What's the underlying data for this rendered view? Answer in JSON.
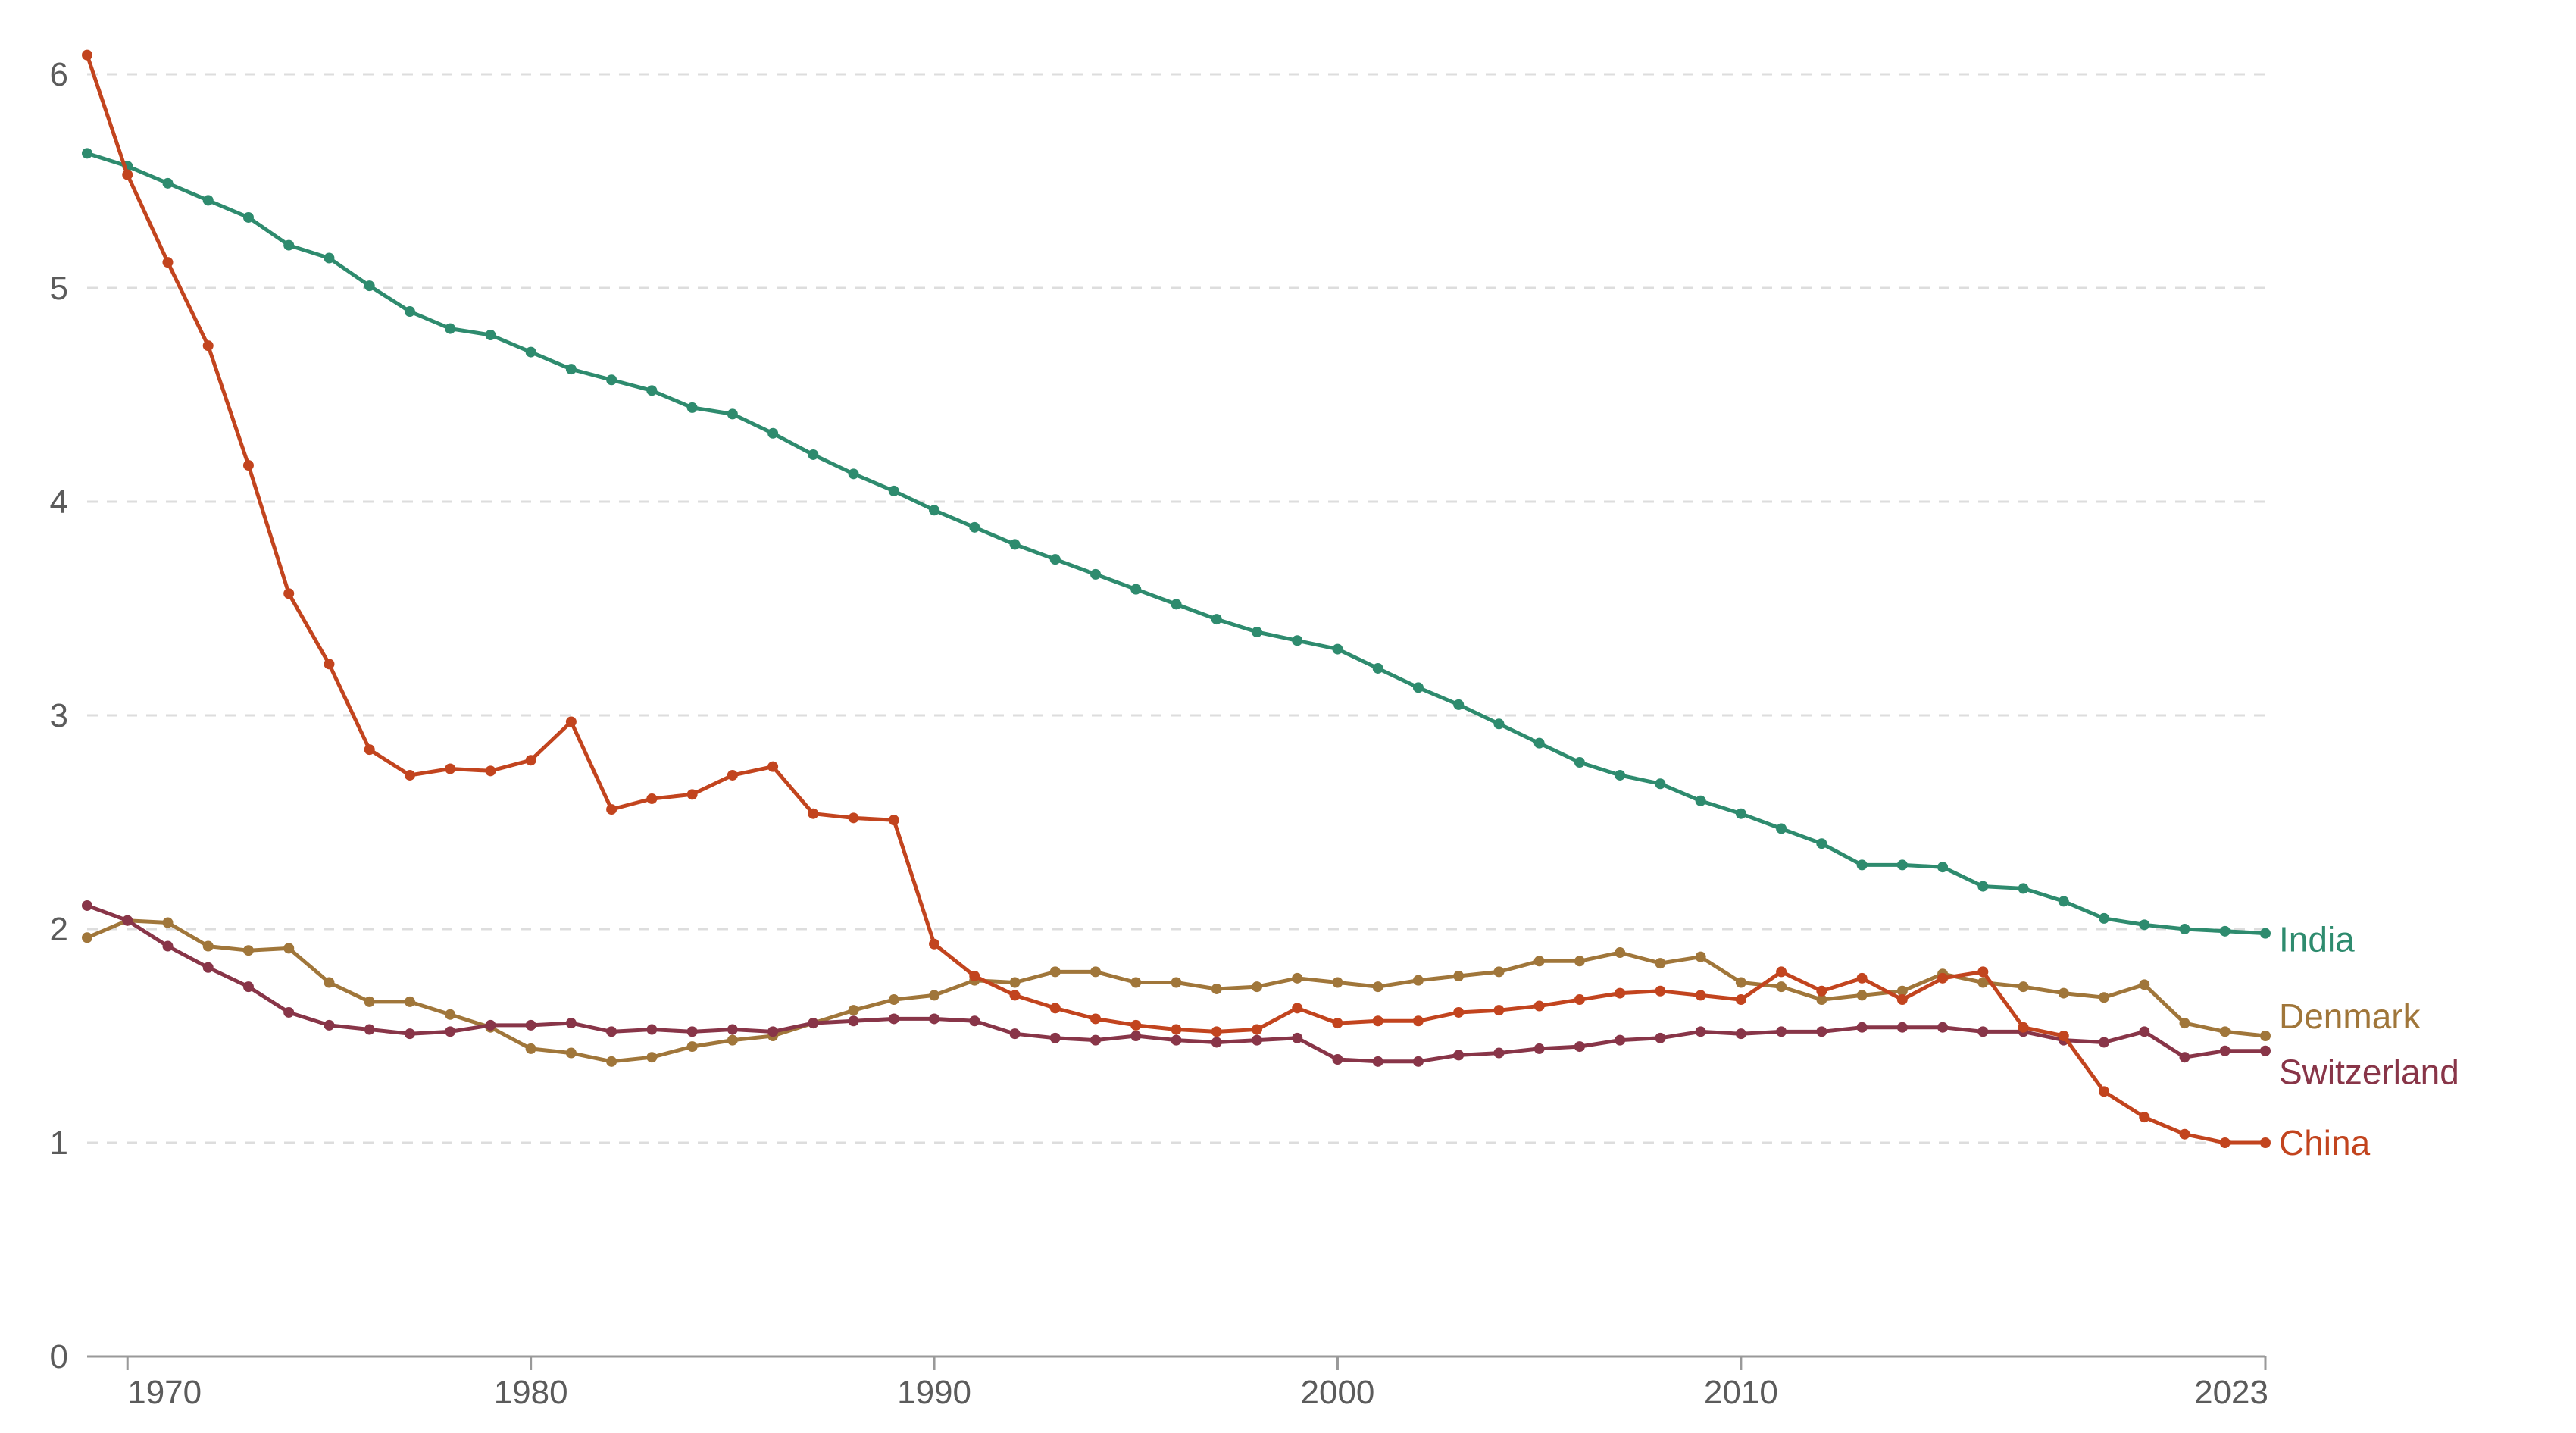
{
  "chart_data": {
    "type": "line",
    "title": "",
    "xlabel": "",
    "ylabel": "",
    "xlim": [
      1969,
      2023
    ],
    "ylim": [
      0,
      6
    ],
    "x_ticks": [
      1970,
      1980,
      1990,
      2000,
      2010,
      2023
    ],
    "y_ticks": [
      0,
      1,
      2,
      3,
      4,
      5,
      6
    ],
    "grid": "horizontal dashed",
    "legend": "inline labels at line ends (right)",
    "x": [
      1969,
      1970,
      1971,
      1972,
      1973,
      1974,
      1975,
      1976,
      1977,
      1978,
      1979,
      1980,
      1981,
      1982,
      1983,
      1984,
      1985,
      1986,
      1987,
      1988,
      1989,
      1990,
      1991,
      1992,
      1993,
      1994,
      1995,
      1996,
      1997,
      1998,
      1999,
      2000,
      2001,
      2002,
      2003,
      2004,
      2005,
      2006,
      2007,
      2008,
      2009,
      2010,
      2011,
      2012,
      2013,
      2014,
      2015,
      2016,
      2017,
      2018,
      2019,
      2020,
      2021,
      2022,
      2023
    ],
    "series": [
      {
        "name": "India",
        "color": "#2e8b6e",
        "values": [
          5.63,
          5.57,
          5.49,
          5.41,
          5.33,
          5.2,
          5.14,
          5.01,
          4.89,
          4.81,
          4.78,
          4.7,
          4.62,
          4.57,
          4.52,
          4.44,
          4.41,
          4.32,
          4.22,
          4.13,
          4.05,
          3.96,
          3.88,
          3.8,
          3.73,
          3.66,
          3.59,
          3.52,
          3.45,
          3.39,
          3.35,
          3.31,
          3.22,
          3.13,
          3.05,
          2.96,
          2.87,
          2.78,
          2.72,
          2.68,
          2.6,
          2.54,
          2.47,
          2.4,
          2.3,
          2.3,
          2.29,
          2.2,
          2.19,
          2.13,
          2.05,
          2.02,
          2.0,
          1.99,
          1.98
        ]
      },
      {
        "name": "Denmark",
        "color": "#a0763a",
        "values": [
          1.96,
          2.04,
          2.03,
          1.92,
          1.9,
          1.91,
          1.75,
          1.66,
          1.66,
          1.6,
          1.54,
          1.44,
          1.42,
          1.38,
          1.4,
          1.45,
          1.48,
          1.5,
          1.56,
          1.62,
          1.67,
          1.69,
          1.76,
          1.75,
          1.8,
          1.8,
          1.75,
          1.75,
          1.72,
          1.73,
          1.77,
          1.75,
          1.73,
          1.76,
          1.78,
          1.8,
          1.85,
          1.85,
          1.89,
          1.84,
          1.87,
          1.75,
          1.73,
          1.67,
          1.69,
          1.71,
          1.79,
          1.75,
          1.73,
          1.7,
          1.68,
          1.74,
          1.56,
          1.52,
          1.5
        ]
      },
      {
        "name": "Switzerland",
        "color": "#883548",
        "values": [
          2.11,
          2.04,
          1.92,
          1.82,
          1.73,
          1.61,
          1.55,
          1.53,
          1.51,
          1.52,
          1.55,
          1.55,
          1.56,
          1.52,
          1.53,
          1.52,
          1.53,
          1.52,
          1.56,
          1.57,
          1.58,
          1.58,
          1.57,
          1.51,
          1.49,
          1.48,
          1.5,
          1.48,
          1.47,
          1.48,
          1.49,
          1.39,
          1.38,
          1.38,
          1.41,
          1.42,
          1.44,
          1.45,
          1.48,
          1.49,
          1.52,
          1.51,
          1.52,
          1.52,
          1.54,
          1.54,
          1.54,
          1.52,
          1.52,
          1.48,
          1.47,
          1.52,
          1.4,
          1.43,
          1.43
        ]
      },
      {
        "name": "China",
        "color": "#c2441e",
        "values": [
          6.09,
          5.53,
          5.12,
          4.73,
          4.17,
          3.57,
          3.24,
          2.84,
          2.72,
          2.75,
          2.74,
          2.79,
          2.97,
          2.56,
          2.61,
          2.63,
          2.72,
          2.76,
          2.54,
          2.52,
          2.51,
          1.93,
          1.78,
          1.69,
          1.63,
          1.58,
          1.55,
          1.53,
          1.52,
          1.53,
          1.63,
          1.56,
          1.57,
          1.57,
          1.61,
          1.62,
          1.64,
          1.67,
          1.7,
          1.71,
          1.69,
          1.67,
          1.8,
          1.71,
          1.77,
          1.67,
          1.77,
          1.8,
          1.54,
          1.5,
          1.24,
          1.12,
          1.04,
          1.0,
          1.0
        ]
      }
    ]
  }
}
